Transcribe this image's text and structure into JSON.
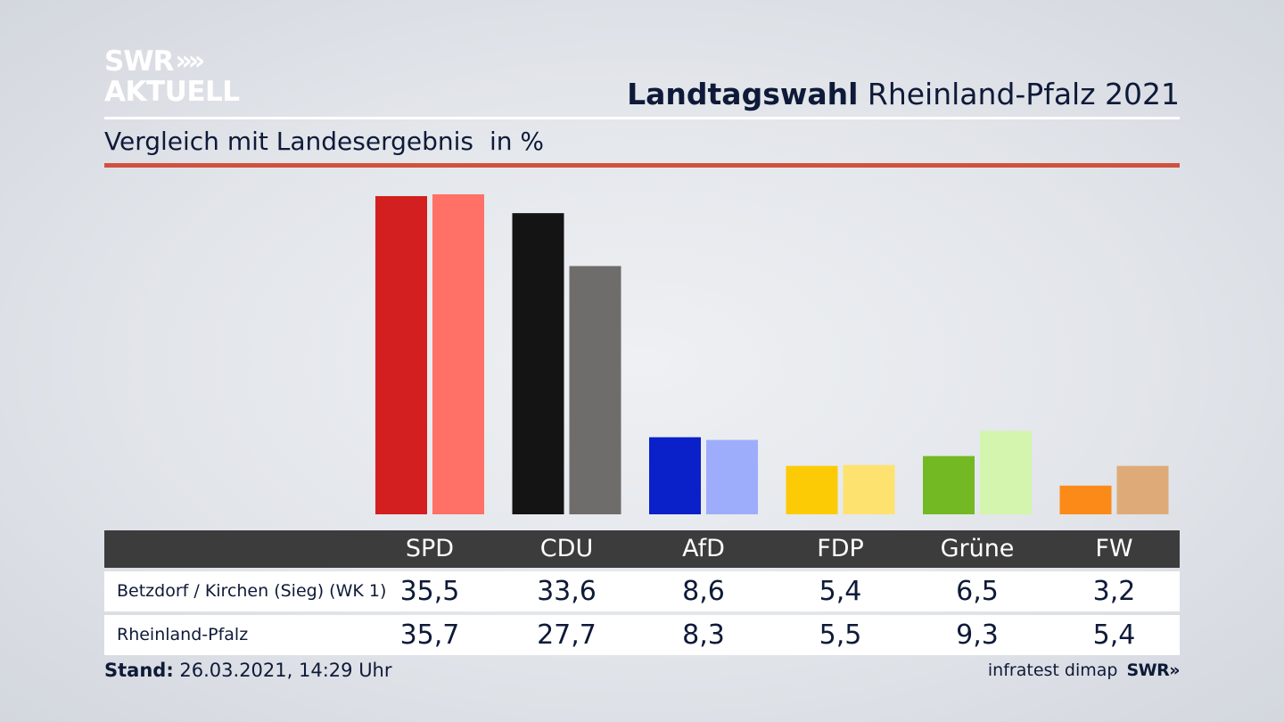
{
  "logo": {
    "line1": "SWR",
    "chevrons": "»",
    "line2": "AKTUELL"
  },
  "header": {
    "title_bold": "Landtagswahl",
    "title_rest": "Rheinland-Pfalz 2021"
  },
  "subtitle": {
    "text": "Vergleich mit Landesergebnis",
    "unit": "in %"
  },
  "footer": {
    "stand_label": "Stand:",
    "stand_value": "26.03.2021, 14:29 Uhr",
    "credit": "infratest dimap",
    "credit_logo": "SWR»"
  },
  "chart_data": {
    "type": "bar",
    "title": "Landtagswahl Rheinland-Pfalz 2021",
    "subtitle": "Vergleich mit Landesergebnis",
    "ylabel": "in %",
    "ylim": [
      0,
      36
    ],
    "grid": false,
    "categories": [
      "SPD",
      "CDU",
      "AfD",
      "FDP",
      "Grüne",
      "FW"
    ],
    "series": [
      {
        "name": "Betzdorf / Kirchen (Sieg) (WK 1)",
        "values": [
          "35,5",
          "33,6",
          "8,6",
          "5,4",
          "6,5",
          "3,2"
        ]
      },
      {
        "name": "Rheinland-Pfalz",
        "values": [
          "35,7",
          "27,7",
          "8,3",
          "5,5",
          "9,3",
          "5,4"
        ]
      }
    ],
    "colors": [
      [
        "#d31f1f",
        "#ff7066"
      ],
      [
        "#141414",
        "#6f6d6b"
      ],
      [
        "#0a20c8",
        "#9dadfb"
      ],
      [
        "#fccb05",
        "#fee26f"
      ],
      [
        "#72b923",
        "#d4f5ad"
      ],
      [
        "#fb8a19",
        "#deab78"
      ]
    ]
  }
}
